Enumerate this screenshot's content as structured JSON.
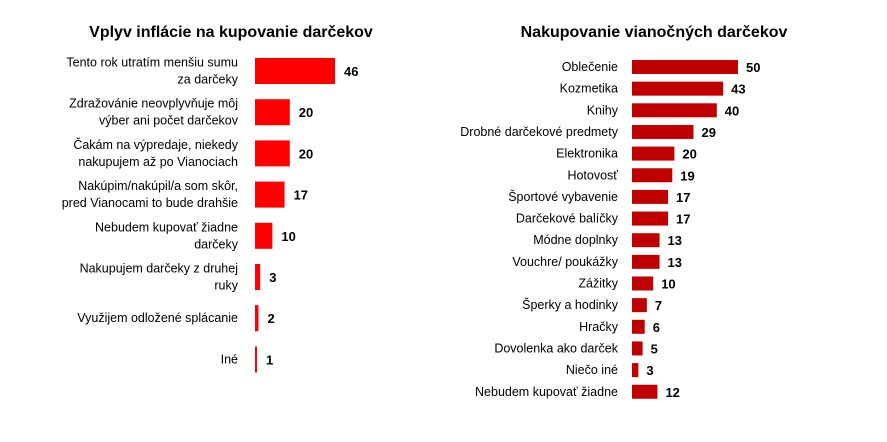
{
  "colors": {
    "bar_left": "#ff0000",
    "bar_right": "#c00000",
    "text": "#000000"
  },
  "chart_data": [
    {
      "type": "bar",
      "orientation": "horizontal",
      "title": "Vplyv inflácie na kupovanie darčekov",
      "categories": [
        [
          "Tento rok utratím menšiu sumu",
          "za darčeky"
        ],
        [
          "Zdražovánie neovplyvňuje  môj",
          "výber ani počet darčekov"
        ],
        [
          "Čakám na  výpredaje, niekedy",
          "nakupujem až po Vianociach"
        ],
        [
          "Nakúpim/nakúpil/a som skôr,",
          "pred Vianocami to bude drahšie"
        ],
        [
          "Nebudem  kupovať žiadne",
          "darčeky"
        ],
        [
          "Nakupujem darčeky z druhej",
          "ruky"
        ],
        [
          "Využijem  odložené splácanie"
        ],
        [
          "Iné"
        ]
      ],
      "values": [
        46,
        20,
        20,
        17,
        10,
        3,
        2,
        1
      ],
      "value_labels": [
        "46",
        "20",
        "20",
        "17",
        "10",
        "3",
        "2",
        "1"
      ],
      "xlim": [
        0,
        46
      ],
      "grid": false
    },
    {
      "type": "bar",
      "orientation": "horizontal",
      "title": "Nakupovanie vianočných darčekov",
      "categories": [
        "Oblečenie",
        "Kozmetika",
        "Knihy",
        "Drobné darčekové predmety",
        "Elektronika",
        "Hotovosť",
        "Športové vybavenie",
        "Darčekové balíčky",
        "Módne doplnky",
        "Vouchre/ poukážky",
        "Zážitky",
        "Šperky a hodinky",
        "Hračky",
        "Dovolenka ako darček",
        "Niečo iné",
        "Nebudem kupovať žiadne"
      ],
      "values": [
        50,
        43,
        40,
        29,
        20,
        19,
        17,
        17,
        13,
        13,
        10,
        7,
        6,
        5,
        3,
        12
      ],
      "value_labels": [
        "50",
        "43",
        "40",
        "29",
        "20",
        "19",
        "17",
        "17",
        "13",
        "13",
        "10",
        "7",
        "6",
        "5",
        "3",
        "12"
      ],
      "xlim": [
        0,
        50
      ],
      "grid": false
    }
  ]
}
